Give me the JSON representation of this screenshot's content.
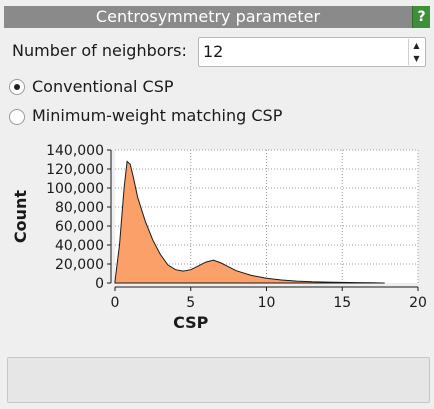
{
  "panel": {
    "title": "Centrosymmetry parameter",
    "help_label": "?"
  },
  "neighbors": {
    "label": "Number of neighbors:",
    "value": "12",
    "up_icon": "triangle-up",
    "down_icon": "triangle-down"
  },
  "method": {
    "options": [
      {
        "label": "Conventional CSP",
        "selected": true
      },
      {
        "label": "Minimum-weight matching CSP",
        "selected": false
      }
    ]
  },
  "colors": {
    "title_bg": "#8a8a8a",
    "help_bg": "#3f8f3a",
    "fill": "#fca06a",
    "stroke": "#1a1a1a"
  },
  "chart_data": {
    "type": "area",
    "xlabel": "CSP",
    "ylabel": "Count",
    "xlim": [
      0,
      20
    ],
    "ylim": [
      0,
      140000
    ],
    "x_ticks": [
      0,
      5,
      10,
      15,
      20
    ],
    "y_ticks": [
      0,
      20000,
      40000,
      60000,
      80000,
      100000,
      120000,
      140000
    ],
    "x_tick_labels": [
      "0",
      "5",
      "10",
      "15",
      "20"
    ],
    "y_tick_labels": [
      "0",
      "20,000",
      "40,000",
      "60,000",
      "80,000",
      "100,000",
      "120,000",
      "140,000"
    ],
    "grid": true,
    "series": [
      {
        "x": [
          0.0,
          0.3,
          0.6,
          0.8,
          1.0,
          1.2,
          1.5,
          2.0,
          2.5,
          3.0,
          3.5,
          4.0,
          4.5,
          5.0,
          5.5,
          6.0,
          6.5,
          7.0,
          7.5,
          8.0,
          9.0,
          10.0,
          11.0,
          12.0,
          13.0,
          14.0,
          15.0,
          16.0,
          17.0,
          17.8
        ],
        "y": [
          2000,
          40000,
          100000,
          128000,
          125000,
          112000,
          90000,
          65000,
          45000,
          30000,
          19000,
          14000,
          12500,
          14000,
          18000,
          22000,
          24000,
          21000,
          17000,
          13000,
          8000,
          5000,
          3200,
          2000,
          1300,
          900,
          600,
          400,
          250,
          0
        ]
      }
    ]
  },
  "status": {
    "text": ""
  }
}
